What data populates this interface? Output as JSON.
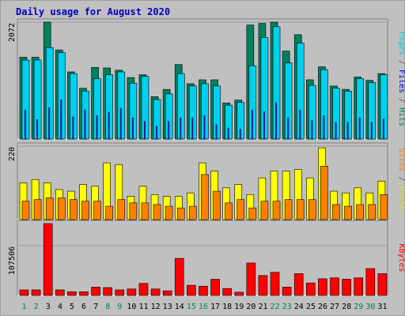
{
  "chart_data": {
    "type": "bar",
    "title": "Daily usage for August 2020",
    "categories": [
      "1",
      "2",
      "3",
      "4",
      "5",
      "6",
      "7",
      "8",
      "9",
      "10",
      "11",
      "12",
      "13",
      "14",
      "15",
      "16",
      "17",
      "18",
      "19",
      "20",
      "21",
      "22",
      "23",
      "24",
      "25",
      "26",
      "27",
      "28",
      "29",
      "30",
      "31"
    ],
    "weekend_days": [
      1,
      2,
      8,
      9,
      15,
      16,
      22,
      23,
      29,
      30
    ],
    "panels": [
      {
        "id": "hits",
        "tick_label": "2072",
        "tick_value": 2072,
        "ymax": 2072,
        "axis_label_parts": [
          {
            "text": "Pages",
            "color": "#00d0e8"
          },
          {
            "text": " / ",
            "color": "#555555"
          },
          {
            "text": "Files",
            "color": "#0000ff"
          },
          {
            "text": " / ",
            "color": "#555555"
          },
          {
            "text": "Hits",
            "color": "#008060"
          }
        ],
        "series": [
          {
            "name": "Hits",
            "color": "#00805c",
            "values": [
              1450,
              1450,
              2072,
              1580,
              1190,
              900,
              1270,
              1260,
              1220,
              1090,
              1140,
              750,
              880,
              1320,
              980,
              1050,
              1050,
              640,
              690,
              2020,
              2050,
              2072,
              1560,
              1850,
              1050,
              1280,
              940,
              880,
              1100,
              1040,
              1160
            ]
          },
          {
            "name": "Files",
            "color": "#00d0f0",
            "values": [
              1400,
              1400,
              1620,
              1530,
              1160,
              850,
              1070,
              1140,
              1190,
              990,
              1110,
              700,
              800,
              1160,
              940,
              980,
              940,
              600,
              650,
              1300,
              1800,
              1990,
              1350,
              1700,
              950,
              1230,
              900,
              850,
              1070,
              1000,
              1140
            ]
          },
          {
            "name": "Pages",
            "color": "#1c1c8c",
            "values": [
              520,
              350,
              560,
              700,
              400,
              520,
              420,
              480,
              550,
              380,
              320,
              230,
              320,
              380,
              380,
              420,
              260,
              200,
              180,
              520,
              490,
              650,
              380,
              520,
              340,
              420,
              300,
              300,
              380,
              300,
              360
            ]
          }
        ]
      },
      {
        "id": "visits",
        "tick_label": "220",
        "tick_value": 220,
        "ymax": 220,
        "axis_label_parts": [
          {
            "text": "Sites",
            "color": "#ff8000"
          },
          {
            "text": " / ",
            "color": "#555555"
          },
          {
            "text": "Visits",
            "color": "#e0e000"
          }
        ],
        "series": [
          {
            "name": "Visits",
            "color": "#ffff00",
            "values": [
              110,
              120,
              110,
              90,
              85,
              105,
              100,
              170,
              165,
              70,
              100,
              75,
              70,
              70,
              80,
              170,
              145,
              95,
              105,
              75,
              125,
              145,
              145,
              150,
              125,
              215,
              85,
              80,
              95,
              80,
              115
            ]
          },
          {
            "name": "Sites",
            "color": "#ff8000",
            "values": [
              55,
              60,
              65,
              65,
              60,
              55,
              55,
              40,
              60,
              50,
              50,
              45,
              40,
              35,
              40,
              135,
              85,
              50,
              60,
              35,
              55,
              55,
              60,
              60,
              60,
              160,
              45,
              40,
              45,
              45,
              75
            ]
          }
        ]
      },
      {
        "id": "kbytes",
        "tick_label": "107506",
        "tick_value": 107506,
        "ymax": 155000,
        "axis_label_parts": [
          {
            "text": "KBytes",
            "color": "#ff0000"
          }
        ],
        "series": [
          {
            "name": "KBytes",
            "color": "#ff0000",
            "values": [
              12000,
              12000,
              155000,
              12000,
              8000,
              8000,
              18000,
              17000,
              12000,
              14000,
              26000,
              14000,
              10000,
              80000,
              22000,
              20000,
              35000,
              15000,
              7000,
              70000,
              43000,
              50000,
              18000,
              47000,
              27000,
              36000,
              38000,
              35000,
              38000,
              58000,
              47000
            ]
          }
        ]
      }
    ]
  }
}
